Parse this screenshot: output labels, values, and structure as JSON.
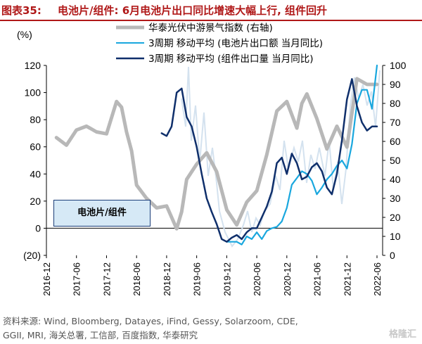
{
  "header": {
    "label": "图表35:",
    "text": "电池片/组件: 6月电池片出口同比增速大幅上行, 组件回升"
  },
  "source": {
    "line1": "资料来源: Wind, Bloomberg, Datayes, iFind, Gessy, Solarzoom, CDE,",
    "line2": "GGII, MRI, 海关总署, 工信部, 百度指数, 华泰研究"
  },
  "watermark": "格隆汇",
  "panel_label": "电池片/组件",
  "colors": {
    "gray": "#b8b8b8",
    "light_blue": "#19a7de",
    "dark_blue": "#0f2f6b",
    "faint": "#d4e2ef",
    "title_red": "#b01818"
  },
  "chart_data": {
    "type": "line",
    "left_axis": {
      "unit_label": "(%)",
      "ylim": [
        -20,
        120
      ],
      "ticks": [
        -20,
        0,
        20,
        40,
        60,
        80,
        100,
        120
      ],
      "tick_labels": [
        "(20)",
        "0",
        "20",
        "40",
        "60",
        "80",
        "100",
        "120"
      ]
    },
    "right_axis": {
      "ylim": [
        0,
        100
      ],
      "ticks": [
        0,
        10,
        20,
        30,
        40,
        50,
        60,
        70,
        80,
        90,
        100
      ]
    },
    "x_labels": [
      "2016-12",
      "2017-06",
      "2017-12",
      "2018-06",
      "2018-12",
      "2019-06",
      "2019-12",
      "2020-06",
      "2020-12",
      "2021-06",
      "2021-12",
      "2022-06"
    ],
    "x_range": [
      "2016-12",
      "2022-06"
    ],
    "legend": {
      "position": "top-right",
      "entries": [
        "华泰光伏中游景气指数 (右轴)",
        "3周期 移动平均 (电池片出口额 当月同比)",
        "3周期 移动平均 (组件出口量 当月同比)"
      ]
    },
    "series": [
      {
        "name": "华泰光伏中游景气指数 (右轴)",
        "axis": "right",
        "x": [
          "2017-02",
          "2017-04",
          "2017-06",
          "2017-08",
          "2017-10",
          "2017-12",
          "2018-02",
          "2018-03",
          "2018-04",
          "2018-05",
          "2018-06",
          "2018-08",
          "2018-10",
          "2018-12",
          "2019-02",
          "2019-03",
          "2019-04",
          "2019-06",
          "2019-08",
          "2019-10",
          "2019-12",
          "2020-02",
          "2020-04",
          "2020-06",
          "2020-08",
          "2020-10",
          "2020-12",
          "2021-02",
          "2021-03",
          "2021-04",
          "2021-06",
          "2021-08",
          "2021-10",
          "2021-12",
          "2022-02",
          "2022-04",
          "2022-06"
        ],
        "values": [
          62,
          58,
          66,
          68,
          65,
          64,
          81,
          78,
          65,
          55,
          37,
          30,
          25,
          26,
          14,
          23,
          40,
          48,
          54,
          44,
          24,
          16,
          28,
          34,
          53,
          76,
          81,
          67,
          80,
          85,
          72,
          56,
          68,
          57,
          93,
          90,
          90
        ]
      },
      {
        "name": "3周期 移动平均 (电池片出口额 当月同比)",
        "axis": "left",
        "x": [
          "2019-12",
          "2020-02",
          "2020-03",
          "2020-04",
          "2020-05",
          "2020-06",
          "2020-07",
          "2020-08",
          "2020-09",
          "2020-10",
          "2020-11",
          "2020-12",
          "2021-01",
          "2021-02",
          "2021-03",
          "2021-04",
          "2021-05",
          "2021-06",
          "2021-07",
          "2021-08",
          "2021-09",
          "2021-10",
          "2021-11",
          "2021-12",
          "2022-01",
          "2022-02",
          "2022-03",
          "2022-04",
          "2022-05",
          "2022-06"
        ],
        "values": [
          -10,
          -10,
          -12,
          -6,
          -8,
          -3,
          -8,
          -2,
          0,
          1,
          5,
          15,
          32,
          37,
          42,
          40,
          35,
          25,
          30,
          36,
          40,
          46,
          50,
          44,
          62,
          92,
          102,
          102,
          88,
          120
        ]
      },
      {
        "name": "3周期 移动平均 (组件出口量 当月同比)",
        "axis": "left",
        "x": [
          "2018-11",
          "2018-12",
          "2019-01",
          "2019-02",
          "2019-03",
          "2019-04",
          "2019-05",
          "2019-06",
          "2019-07",
          "2019-08",
          "2019-09",
          "2019-10",
          "2019-11",
          "2019-12",
          "2020-01",
          "2020-02",
          "2020-03",
          "2020-04",
          "2020-05",
          "2020-06",
          "2020-07",
          "2020-08",
          "2020-09",
          "2020-10",
          "2020-11",
          "2020-12",
          "2021-01",
          "2021-02",
          "2021-03",
          "2021-04",
          "2021-05",
          "2021-06",
          "2021-07",
          "2021-08",
          "2021-09",
          "2021-10",
          "2021-11",
          "2021-12",
          "2022-01",
          "2022-02",
          "2022-03",
          "2022-04",
          "2022-05",
          "2022-06"
        ],
        "values": [
          70,
          68,
          75,
          100,
          103,
          82,
          75,
          60,
          40,
          22,
          12,
          3,
          -8,
          -10,
          -7,
          -5,
          -8,
          -3,
          0,
          0,
          8,
          16,
          27,
          48,
          52,
          40,
          55,
          48,
          36,
          38,
          45,
          48,
          42,
          30,
          25,
          40,
          65,
          95,
          110,
          90,
          78,
          72,
          75,
          75
        ]
      }
    ]
  }
}
